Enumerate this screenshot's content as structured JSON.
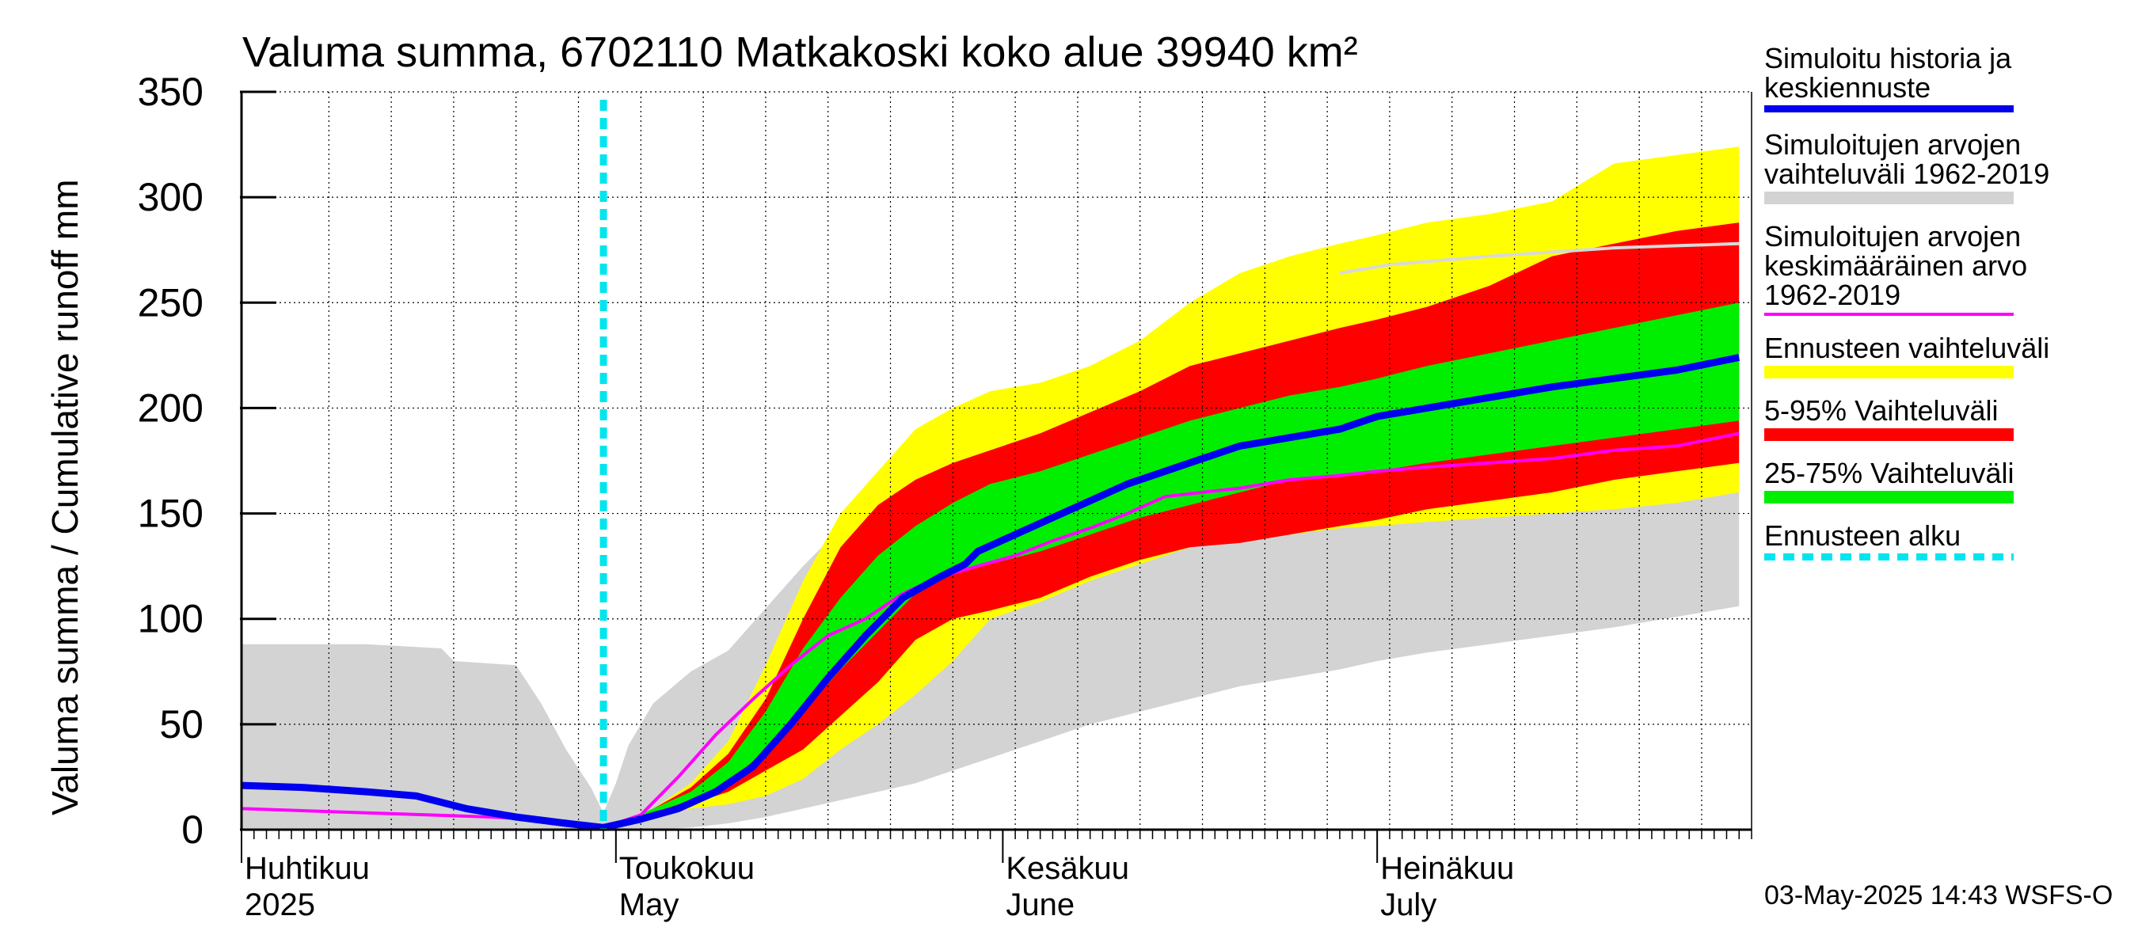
{
  "chart_data": {
    "type": "area",
    "title": "Valuma summa, 6702110 Matkakoski koko alue 39940 km²",
    "ylabel": "Valuma summa / Cumulative runoff    mm",
    "ylim": [
      0,
      350
    ],
    "y_ticks": [
      0,
      50,
      100,
      150,
      200,
      250,
      300,
      350
    ],
    "x_start": "2025-04-01",
    "x_end": "2025-07-31",
    "forecast_start_day": 29,
    "grid": true,
    "month_labels": [
      {
        "fi": "Huhtikuu",
        "en": "2025",
        "day": 0
      },
      {
        "fi": "Toukokuu",
        "en": "May",
        "day": 30
      },
      {
        "fi": "Kesäkuu",
        "en": "June",
        "day": 61
      },
      {
        "fi": "Heinäkuu",
        "en": "July",
        "day": 91
      }
    ],
    "series": [
      {
        "name": "Simuloitujen arvojen vaihteluväli 1962-2019",
        "kind": "band",
        "color": "#d3d3d3",
        "x": [
          0,
          10,
          16,
          17,
          22,
          24,
          26,
          28,
          29,
          30,
          31,
          33,
          36,
          39,
          42,
          45,
          48,
          51,
          54,
          57,
          60,
          64,
          68,
          72,
          76,
          80,
          84,
          88,
          91,
          95,
          100,
          105,
          110,
          115,
          120
        ],
        "upper": [
          88,
          88,
          86,
          80,
          78,
          60,
          38,
          20,
          8,
          22,
          40,
          60,
          75,
          85,
          105,
          125,
          143,
          155,
          165,
          178,
          190,
          208,
          218,
          228,
          238,
          248,
          254,
          260,
          265,
          268,
          270,
          272,
          274,
          276,
          278
        ],
        "lower": [
          0,
          0,
          0,
          0,
          0,
          0,
          0,
          0,
          0,
          0,
          0,
          0,
          1,
          3,
          6,
          10,
          14,
          18,
          22,
          28,
          34,
          42,
          50,
          56,
          62,
          68,
          72,
          76,
          80,
          84,
          88,
          92,
          96,
          101,
          106
        ]
      },
      {
        "name": "Ennusteen vaihteluväli",
        "kind": "band",
        "color": "#ffff00",
        "x": [
          29,
          31,
          33,
          36,
          39,
          42,
          45,
          48,
          51,
          54,
          57,
          60,
          64,
          68,
          72,
          76,
          80,
          84,
          88,
          91,
          95,
          100,
          105,
          110,
          115,
          120
        ],
        "upper": [
          2,
          5,
          10,
          22,
          42,
          78,
          118,
          150,
          170,
          190,
          200,
          208,
          212,
          220,
          232,
          250,
          264,
          272,
          278,
          282,
          288,
          292,
          298,
          316,
          320,
          324
        ],
        "lower": [
          0,
          3,
          6,
          10,
          12,
          16,
          24,
          38,
          50,
          64,
          80,
          100,
          108,
          118,
          126,
          134,
          138,
          140,
          143,
          144,
          146,
          148,
          150,
          152,
          155,
          160
        ]
      },
      {
        "name": "5-95% Vaihteluväli",
        "kind": "band",
        "color": "#ff0000",
        "x": [
          29,
          31,
          33,
          36,
          39,
          42,
          45,
          48,
          51,
          54,
          57,
          60,
          64,
          68,
          72,
          76,
          80,
          84,
          88,
          91,
          95,
          100,
          105,
          110,
          115,
          120
        ],
        "upper": [
          2,
          5,
          10,
          20,
          36,
          62,
          100,
          134,
          154,
          166,
          174,
          180,
          188,
          198,
          208,
          220,
          226,
          232,
          238,
          242,
          248,
          258,
          272,
          278,
          284,
          288
        ],
        "lower": [
          0,
          3,
          7,
          12,
          18,
          28,
          38,
          54,
          70,
          90,
          100,
          104,
          110,
          120,
          128,
          134,
          136,
          140,
          144,
          147,
          152,
          156,
          160,
          166,
          170,
          174
        ]
      },
      {
        "name": "25-75% Vaihteluväli",
        "kind": "band",
        "color": "#00ee00",
        "x": [
          29,
          31,
          33,
          36,
          39,
          42,
          45,
          48,
          51,
          54,
          57,
          60,
          64,
          68,
          72,
          76,
          80,
          84,
          88,
          91,
          95,
          100,
          105,
          110,
          115,
          120
        ],
        "upper": [
          2,
          5,
          10,
          18,
          32,
          56,
          86,
          110,
          130,
          144,
          155,
          164,
          170,
          178,
          186,
          194,
          200,
          206,
          210,
          214,
          220,
          226,
          232,
          238,
          244,
          250
        ],
        "lower": [
          0,
          4,
          8,
          14,
          22,
          38,
          56,
          76,
          94,
          112,
          122,
          126,
          132,
          140,
          148,
          154,
          160,
          166,
          168,
          170,
          174,
          178,
          182,
          186,
          190,
          194
        ]
      },
      {
        "name": "Simuloitujen arvojen keskimääräinen arvo 1962-2019",
        "kind": "line",
        "color": "#ff00ff",
        "x": [
          0,
          10,
          20,
          26,
          29,
          32,
          35,
          38,
          41,
          44,
          47,
          50,
          53,
          56,
          59,
          62,
          65,
          68,
          71,
          74,
          77,
          80,
          84,
          88,
          91,
          95,
          100,
          105,
          110,
          115,
          120
        ],
        "values": [
          10,
          8,
          6,
          4,
          1,
          7,
          25,
          45,
          62,
          78,
          92,
          100,
          112,
          120,
          125,
          130,
          137,
          143,
          150,
          158,
          160,
          162,
          166,
          168,
          170,
          172,
          174,
          176,
          180,
          182,
          188
        ]
      },
      {
        "name": "Simuloitu historia ja keskiennuste",
        "kind": "line",
        "color": "#0000ee",
        "x": [
          0,
          5,
          10,
          14,
          18,
          22,
          26,
          29,
          32,
          35,
          38,
          41,
          44,
          47,
          50,
          53,
          56,
          58,
          59,
          62,
          65,
          68,
          71,
          74,
          77,
          80,
          84,
          88,
          91,
          95,
          100,
          105,
          110,
          115,
          120
        ],
        "values": [
          21,
          20,
          18,
          16,
          10,
          6,
          3,
          1,
          5,
          10,
          18,
          30,
          50,
          72,
          92,
          110,
          120,
          126,
          132,
          140,
          148,
          156,
          164,
          170,
          176,
          182,
          186,
          190,
          196,
          200,
          205,
          210,
          214,
          218,
          224
        ]
      },
      {
        "name": "Simuloitujen arvojen vaihteluväli upper bound line",
        "kind": "line",
        "color": "#d9d9d9",
        "x": [
          88,
          92,
          96,
          100,
          105,
          110,
          115,
          120
        ],
        "values": [
          264,
          268,
          270,
          272,
          274,
          276,
          277,
          278
        ]
      }
    ]
  },
  "legend": [
    {
      "label": "Simuloitu historia ja\nkeskiennuste",
      "color": "#0000ee",
      "style": "line"
    },
    {
      "label": "Simuloitujen arvojen\nvaihteluväli 1962-2019",
      "color": "#d3d3d3",
      "style": "band"
    },
    {
      "label": "Simuloitujen arvojen\nkeskimääräinen arvo\n   1962-2019",
      "color": "#ff00ff",
      "style": "thin"
    },
    {
      "label": "Ennusteen vaihteluväli",
      "color": "#ffff00",
      "style": "band"
    },
    {
      "label": "5-95% Vaihteluväli",
      "color": "#ff0000",
      "style": "band"
    },
    {
      "label": "25-75% Vaihteluväli",
      "color": "#00ee00",
      "style": "band"
    },
    {
      "label": "Ennusteen alku",
      "color": "#00e5ee",
      "style": "dashed"
    }
  ],
  "timestamp": "03-May-2025 14:43 WSFS-O"
}
